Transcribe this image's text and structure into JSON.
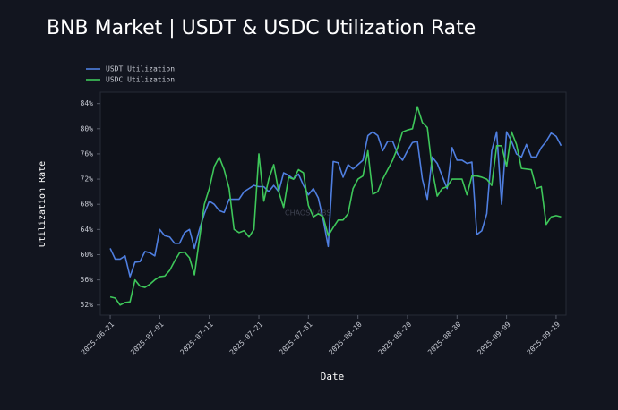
{
  "chart_data": {
    "type": "line",
    "title": "BNB Market | USDT & USDC Utilization Rate",
    "x_label": "Date",
    "y_label": "Utilization Rate",
    "watermark": "CHAOS LABS",
    "legend": "top-left",
    "grid": false,
    "x": [
      "2025-06-21",
      "2025-06-22",
      "2025-06-23",
      "2025-06-24",
      "2025-06-25",
      "2025-06-26",
      "2025-06-27",
      "2025-06-28",
      "2025-06-29",
      "2025-06-30",
      "2025-07-01",
      "2025-07-02",
      "2025-07-03",
      "2025-07-04",
      "2025-07-05",
      "2025-07-06",
      "2025-07-07",
      "2025-07-08",
      "2025-07-09",
      "2025-07-10",
      "2025-07-11",
      "2025-07-12",
      "2025-07-13",
      "2025-07-14",
      "2025-07-15",
      "2025-07-16",
      "2025-07-17",
      "2025-07-18",
      "2025-07-19",
      "2025-07-20",
      "2025-07-21",
      "2025-07-22",
      "2025-07-23",
      "2025-07-24",
      "2025-07-25",
      "2025-07-26",
      "2025-07-27",
      "2025-07-28",
      "2025-07-29",
      "2025-07-30",
      "2025-07-31",
      "2025-08-01",
      "2025-08-02",
      "2025-08-03",
      "2025-08-04",
      "2025-08-05",
      "2025-08-06",
      "2025-08-07",
      "2025-08-08",
      "2025-08-09",
      "2025-08-10",
      "2025-08-11",
      "2025-08-12",
      "2025-08-13",
      "2025-08-14",
      "2025-08-15",
      "2025-08-16",
      "2025-08-17",
      "2025-08-18",
      "2025-08-19",
      "2025-08-20",
      "2025-08-21",
      "2025-08-22",
      "2025-08-23",
      "2025-08-24",
      "2025-08-25",
      "2025-08-26",
      "2025-08-27",
      "2025-08-28",
      "2025-08-29",
      "2025-08-30",
      "2025-08-31",
      "2025-09-01",
      "2025-09-02",
      "2025-09-03",
      "2025-09-04",
      "2025-09-05",
      "2025-09-06",
      "2025-09-07",
      "2025-09-08",
      "2025-09-09",
      "2025-09-10",
      "2025-09-11",
      "2025-09-12",
      "2025-09-13",
      "2025-09-14",
      "2025-09-15",
      "2025-09-16",
      "2025-09-17",
      "2025-09-18",
      "2025-09-19",
      "2025-09-20"
    ],
    "series": [
      {
        "name": "USDT Utilization",
        "color": "#4f7fe0",
        "values": [
          61.0,
          59.3,
          59.3,
          59.8,
          56.5,
          58.8,
          58.9,
          60.5,
          60.3,
          59.8,
          64.0,
          63.0,
          62.8,
          61.8,
          61.8,
          63.5,
          64.0,
          61.0,
          64.0,
          66.5,
          68.5,
          68.0,
          67.0,
          66.7,
          68.8,
          68.8,
          68.8,
          70.0,
          70.5,
          71.0,
          70.8,
          70.8,
          70.0,
          71.0,
          70.0,
          73.0,
          72.6,
          72.0,
          72.8,
          71.0,
          69.5,
          70.5,
          69.0,
          65.5,
          61.3,
          74.8,
          74.6,
          72.3,
          74.3,
          73.6,
          74.3,
          75.0,
          78.9,
          79.5,
          78.9,
          76.5,
          78.0,
          78.0,
          76.0,
          75.0,
          76.5,
          77.8,
          78.0,
          72.0,
          68.8,
          75.5,
          74.5,
          72.5,
          70.5,
          77.0,
          75.0,
          75.0,
          74.5,
          74.7,
          63.2,
          63.8,
          66.5,
          76.5,
          79.5,
          68.0,
          79.5,
          78.0,
          76.0,
          75.5,
          77.5,
          75.5,
          75.5,
          77.0,
          78.0,
          79.3,
          78.8,
          77.3
        ]
      },
      {
        "name": "USDC Utilization",
        "color": "#3ec75a",
        "values": [
          53.3,
          53.1,
          52.0,
          52.4,
          52.5,
          56.0,
          55.0,
          54.8,
          55.3,
          56.0,
          56.5,
          56.6,
          57.5,
          59.0,
          60.3,
          60.4,
          59.5,
          56.8,
          62.5,
          68.0,
          70.5,
          74.0,
          75.5,
          73.5,
          70.5,
          64.0,
          63.5,
          63.8,
          62.8,
          64.0,
          76.0,
          68.5,
          72.0,
          74.3,
          70.0,
          67.5,
          72.3,
          72.0,
          73.5,
          73.0,
          67.8,
          66.0,
          66.5,
          66.0,
          63.0,
          64.3,
          65.5,
          65.5,
          66.5,
          70.5,
          72.0,
          72.5,
          76.5,
          69.6,
          70.0,
          72.0,
          73.5,
          75.0,
          77.0,
          79.5,
          79.8,
          80.0,
          83.5,
          81.0,
          80.2,
          73.5,
          69.3,
          70.5,
          70.8,
          72.0,
          72.0,
          72.0,
          69.5,
          72.5,
          72.5,
          72.3,
          72.0,
          71.0,
          77.3,
          77.3,
          74.0,
          79.5,
          77.5,
          73.7,
          73.6,
          73.5,
          70.5,
          70.8,
          64.8,
          66.0,
          66.2,
          66.0
        ]
      }
    ],
    "xlim": [
      "2025-06-19",
      "2025-09-21"
    ],
    "xticks": [
      "2025-06-21",
      "2025-07-01",
      "2025-07-11",
      "2025-07-21",
      "2025-07-31",
      "2025-08-10",
      "2025-08-20",
      "2025-08-30",
      "2025-09-09",
      "2025-09-19"
    ],
    "ylim": [
      50.4,
      85.8
    ],
    "yticks": [
      {
        "value": 52,
        "label": "52%"
      },
      {
        "value": 56,
        "label": "56%"
      },
      {
        "value": 60,
        "label": "60%"
      },
      {
        "value": 64,
        "label": "64%"
      },
      {
        "value": 68,
        "label": "68%"
      },
      {
        "value": 72,
        "label": "72%"
      },
      {
        "value": 76,
        "label": "76%"
      },
      {
        "value": 80,
        "label": "80%"
      },
      {
        "value": 84,
        "label": "84%"
      }
    ]
  }
}
